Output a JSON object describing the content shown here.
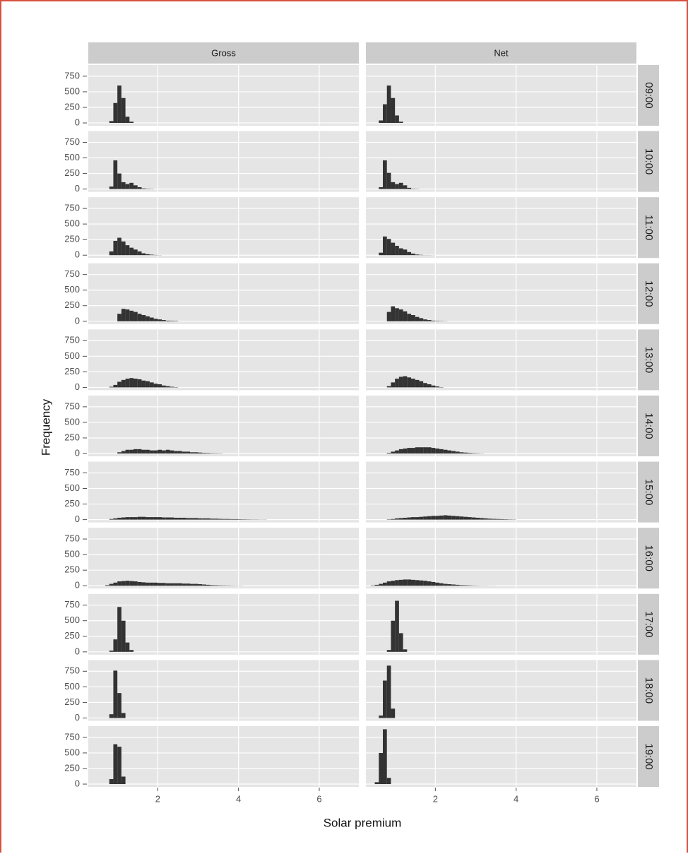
{
  "chart_data": {
    "type": "histogram",
    "xlabel": "Solar premium",
    "ylabel": "Frequency",
    "xlim": [
      0.28,
      6.98
    ],
    "xticks": [
      2,
      4,
      6
    ],
    "ylim": [
      -45,
      930
    ],
    "yticks": [
      0,
      250,
      500,
      750
    ],
    "grid": true,
    "color": "#333333",
    "facet_columns": [
      "Gross",
      "Net"
    ],
    "facet_rows": [
      "09:00",
      "10:00",
      "11:00",
      "12:00",
      "13:00",
      "14:00",
      "15:00",
      "16:00",
      "17:00",
      "18:00",
      "19:00"
    ],
    "panels": [
      {
        "bins": [
          0.8,
          0.9,
          1.0,
          1.1,
          1.2,
          1.3,
          1.4
        ],
        "counts": [
          30,
          320,
          600,
          400,
          100,
          20
        ]
      },
      {
        "bins": [
          0.6,
          0.7,
          0.8,
          0.9,
          1.0,
          1.1,
          1.2
        ],
        "counts": [
          40,
          300,
          600,
          400,
          120,
          20
        ]
      },
      {
        "bins": [
          0.8,
          0.9,
          1.0,
          1.1,
          1.2,
          1.3,
          1.4,
          1.5,
          1.6,
          1.7,
          1.8,
          1.9
        ],
        "counts": [
          40,
          460,
          250,
          110,
          80,
          100,
          60,
          30,
          10,
          5,
          3
        ]
      },
      {
        "bins": [
          0.6,
          0.7,
          0.8,
          0.9,
          1.0,
          1.1,
          1.2,
          1.3,
          1.4,
          1.5,
          1.6
        ],
        "counts": [
          30,
          460,
          260,
          110,
          80,
          100,
          60,
          20,
          5,
          3
        ]
      },
      {
        "bins": [
          0.8,
          0.9,
          1.0,
          1.1,
          1.2,
          1.3,
          1.4,
          1.5,
          1.6,
          1.7,
          1.8,
          1.9,
          2.0,
          2.1
        ],
        "counts": [
          60,
          230,
          280,
          220,
          160,
          120,
          90,
          60,
          30,
          15,
          8,
          4,
          2
        ]
      },
      {
        "bins": [
          0.6,
          0.7,
          0.8,
          0.9,
          1.0,
          1.1,
          1.2,
          1.3,
          1.4,
          1.5,
          1.6,
          1.7,
          1.8,
          1.9,
          2.0
        ],
        "counts": [
          40,
          300,
          260,
          200,
          150,
          110,
          90,
          50,
          25,
          10,
          5,
          2,
          2,
          1
        ]
      },
      {
        "bins": [
          1.0,
          1.1,
          1.2,
          1.3,
          1.4,
          1.5,
          1.6,
          1.7,
          1.8,
          1.9,
          2.0,
          2.1,
          2.2,
          2.3,
          2.4,
          2.5
        ],
        "counts": [
          120,
          200,
          190,
          170,
          150,
          120,
          100,
          80,
          60,
          40,
          30,
          20,
          10,
          8,
          6
        ]
      },
      {
        "bins": [
          0.8,
          0.9,
          1.0,
          1.1,
          1.2,
          1.3,
          1.4,
          1.5,
          1.6,
          1.7,
          1.8,
          1.9,
          2.0,
          2.1,
          2.2,
          2.3
        ],
        "counts": [
          150,
          240,
          210,
          190,
          160,
          120,
          100,
          70,
          50,
          30,
          20,
          10,
          6,
          4,
          2
        ]
      },
      {
        "bins": [
          0.8,
          0.9,
          1.0,
          1.1,
          1.2,
          1.3,
          1.4,
          1.5,
          1.6,
          1.7,
          1.8,
          1.9,
          2.0,
          2.1,
          2.2,
          2.3,
          2.4,
          2.5
        ],
        "counts": [
          10,
          40,
          90,
          120,
          140,
          150,
          140,
          130,
          110,
          100,
          80,
          60,
          50,
          30,
          20,
          10,
          5
        ]
      },
      {
        "bins": [
          0.8,
          0.9,
          1.0,
          1.1,
          1.2,
          1.3,
          1.4,
          1.5,
          1.6,
          1.7,
          1.8,
          1.9,
          2.0,
          2.1,
          2.2
        ],
        "counts": [
          20,
          80,
          140,
          170,
          180,
          160,
          140,
          120,
          100,
          70,
          50,
          30,
          15,
          5
        ]
      },
      {
        "bins": [
          1.0,
          1.1,
          1.2,
          1.3,
          1.4,
          1.5,
          1.6,
          1.7,
          1.8,
          1.9,
          2.0,
          2.1,
          2.2,
          2.3,
          2.4,
          2.5,
          2.6,
          2.7,
          2.8,
          2.9,
          3.0,
          3.1,
          3.2,
          3.3,
          3.4,
          3.5,
          3.6
        ],
        "counts": [
          20,
          40,
          60,
          60,
          70,
          70,
          60,
          60,
          50,
          50,
          60,
          50,
          60,
          50,
          40,
          40,
          30,
          30,
          20,
          20,
          15,
          10,
          8,
          5,
          4,
          3
        ]
      },
      {
        "bins": [
          0.8,
          0.9,
          1.0,
          1.1,
          1.2,
          1.3,
          1.4,
          1.5,
          1.6,
          1.7,
          1.8,
          1.9,
          2.0,
          2.1,
          2.2,
          2.3,
          2.4,
          2.5,
          2.6,
          2.7,
          2.8,
          2.9,
          3.0,
          3.1,
          3.2
        ],
        "counts": [
          10,
          30,
          50,
          70,
          80,
          90,
          90,
          100,
          100,
          100,
          100,
          90,
          80,
          70,
          60,
          50,
          40,
          30,
          20,
          15,
          10,
          6,
          4,
          2
        ]
      },
      {
        "bins": [
          0.8,
          0.9,
          1.0,
          1.1,
          1.2,
          1.3,
          1.4,
          1.5,
          1.6,
          1.7,
          1.8,
          1.9,
          2.0,
          2.1,
          2.2,
          2.3,
          2.4,
          2.5,
          2.6,
          2.7,
          2.8,
          2.9,
          3.0,
          3.1,
          3.2,
          3.3,
          3.4,
          3.5,
          3.6,
          3.7,
          3.8,
          3.9,
          4.0,
          4.1,
          4.2,
          4.3,
          4.4,
          4.5,
          4.6,
          4.7
        ],
        "counts": [
          10,
          20,
          30,
          35,
          40,
          40,
          40,
          45,
          45,
          40,
          40,
          40,
          40,
          35,
          35,
          35,
          30,
          30,
          30,
          25,
          25,
          25,
          20,
          20,
          20,
          15,
          15,
          12,
          10,
          10,
          8,
          8,
          6,
          5,
          4,
          3,
          3,
          2,
          2
        ]
      },
      {
        "bins": [
          0.8,
          0.9,
          1.0,
          1.1,
          1.2,
          1.3,
          1.4,
          1.5,
          1.6,
          1.7,
          1.8,
          1.9,
          2.0,
          2.1,
          2.2,
          2.3,
          2.4,
          2.5,
          2.6,
          2.7,
          2.8,
          2.9,
          3.0,
          3.1,
          3.2,
          3.3,
          3.4,
          3.5,
          3.6,
          3.7,
          3.8,
          3.9,
          4.0
        ],
        "counts": [
          5,
          10,
          20,
          25,
          30,
          35,
          40,
          40,
          45,
          50,
          55,
          60,
          60,
          65,
          70,
          65,
          60,
          55,
          50,
          45,
          40,
          35,
          30,
          25,
          20,
          15,
          12,
          10,
          8,
          6,
          4,
          3
        ]
      },
      {
        "bins": [
          0.7,
          0.8,
          0.9,
          1.0,
          1.1,
          1.2,
          1.3,
          1.4,
          1.5,
          1.6,
          1.7,
          1.8,
          1.9,
          2.0,
          2.1,
          2.2,
          2.3,
          2.4,
          2.5,
          2.6,
          2.7,
          2.8,
          2.9,
          3.0,
          3.1,
          3.2,
          3.3,
          3.4,
          3.5,
          3.6,
          3.7,
          3.8,
          3.9,
          4.0,
          4.1
        ],
        "counts": [
          10,
          30,
          50,
          70,
          75,
          80,
          75,
          70,
          60,
          55,
          50,
          50,
          50,
          45,
          45,
          40,
          40,
          40,
          40,
          35,
          35,
          30,
          30,
          25,
          20,
          15,
          10,
          8,
          6,
          5,
          4,
          3,
          2,
          2
        ]
      },
      {
        "bins": [
          0.4,
          0.5,
          0.6,
          0.7,
          0.8,
          0.9,
          1.0,
          1.1,
          1.2,
          1.3,
          1.4,
          1.5,
          1.6,
          1.7,
          1.8,
          1.9,
          2.0,
          2.1,
          2.2,
          2.3,
          2.4,
          2.5,
          2.6,
          2.7,
          2.8,
          2.9,
          3.0,
          3.1,
          3.2,
          3.3,
          3.4,
          3.5
        ],
        "counts": [
          5,
          15,
          30,
          50,
          70,
          80,
          90,
          95,
          100,
          100,
          95,
          90,
          85,
          80,
          70,
          60,
          50,
          40,
          30,
          25,
          20,
          15,
          10,
          8,
          6,
          4,
          3,
          2,
          2,
          1,
          1
        ]
      },
      {
        "bins": [
          0.8,
          0.9,
          1.0,
          1.1,
          1.2,
          1.3,
          1.4
        ],
        "counts": [
          20,
          200,
          720,
          500,
          150,
          30
        ]
      },
      {
        "bins": [
          0.8,
          0.9,
          1.0,
          1.1,
          1.2,
          1.3
        ],
        "counts": [
          30,
          500,
          820,
          300,
          40
        ]
      },
      {
        "bins": [
          0.8,
          0.9,
          1.0,
          1.1,
          1.2
        ],
        "counts": [
          60,
          760,
          400,
          80
        ]
      },
      {
        "bins": [
          0.6,
          0.7,
          0.8,
          0.9,
          1.0
        ],
        "counts": [
          40,
          600,
          840,
          150
        ]
      },
      {
        "bins": [
          0.8,
          0.9,
          1.0,
          1.1,
          1.2
        ],
        "counts": [
          80,
          640,
          600,
          120
        ]
      },
      {
        "bins": [
          0.5,
          0.6,
          0.7,
          0.8,
          0.9
        ],
        "counts": [
          30,
          500,
          880,
          100
        ]
      }
    ]
  }
}
